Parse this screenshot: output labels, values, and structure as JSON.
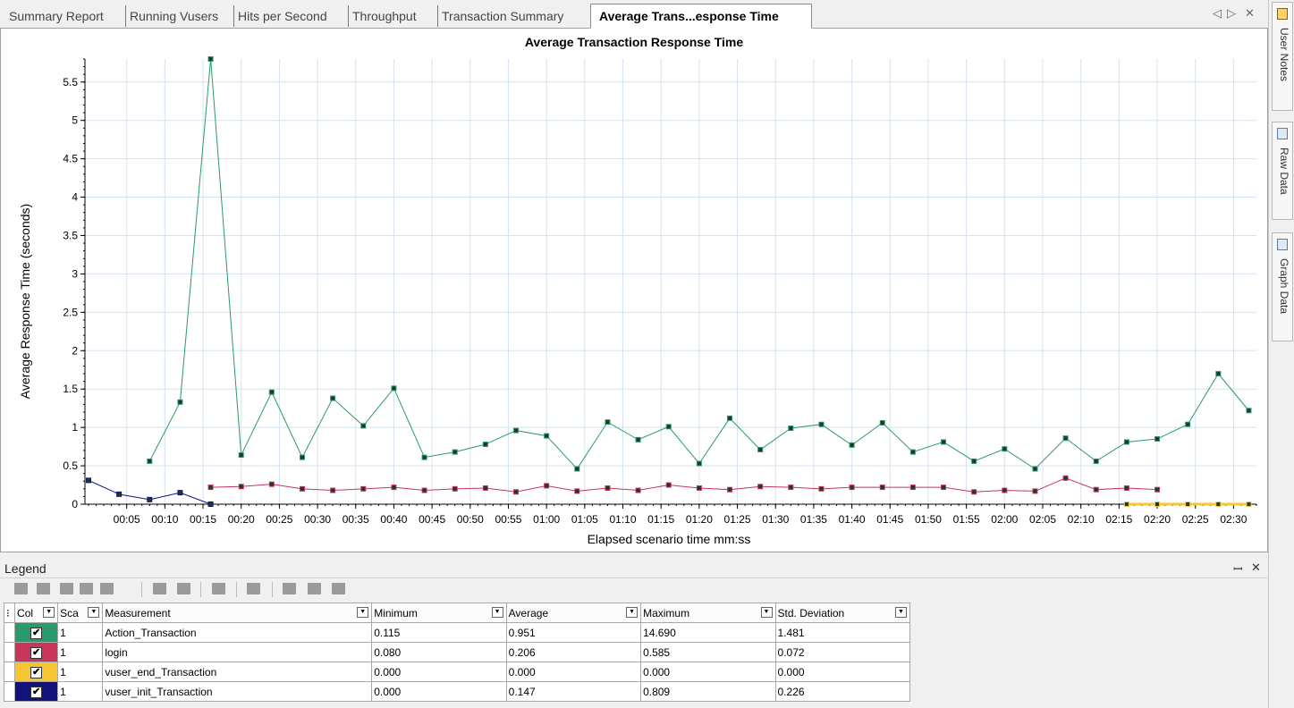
{
  "tabs": [
    {
      "label": "Summary Report",
      "active": false
    },
    {
      "label": "Running Vusers",
      "active": false
    },
    {
      "label": "Hits per Second",
      "active": false
    },
    {
      "label": "Throughput",
      "active": false
    },
    {
      "label": "Transaction Summary",
      "active": false
    },
    {
      "label": "Average Trans...esponse Time",
      "active": true
    }
  ],
  "tab_nav": {
    "prev": "◁",
    "next": "▷",
    "close": "✕"
  },
  "right_rail": [
    {
      "label": "User Notes",
      "icon": "user-notes-icon"
    },
    {
      "label": "Raw Data",
      "icon": "raw-data-icon"
    },
    {
      "label": "Graph Data",
      "icon": "graph-data-icon"
    }
  ],
  "chart_data": {
    "type": "line",
    "title": "Average Transaction Response Time",
    "xlabel": "Elapsed scenario time mm:ss",
    "ylabel": "Average Response Time (seconds)",
    "ylim": [
      0,
      5.8
    ],
    "y_ticks": [
      "0",
      "0.5",
      "1",
      "1.5",
      "2",
      "2.5",
      "3",
      "3.5",
      "4",
      "4.5",
      "5",
      "5.5"
    ],
    "x_ticks": [
      "00:05",
      "00:10",
      "00:15",
      "00:20",
      "00:25",
      "00:30",
      "00:35",
      "00:40",
      "00:45",
      "00:50",
      "00:55",
      "01:00",
      "01:05",
      "01:10",
      "01:15",
      "01:20",
      "01:25",
      "01:30",
      "01:35",
      "01:40",
      "01:45",
      "01:50",
      "01:55",
      "02:00",
      "02:05",
      "02:10",
      "02:15",
      "02:20",
      "02:25",
      "02:30"
    ],
    "x_unit": "seconds",
    "xlim": [
      0,
      153
    ],
    "grid": true,
    "series": [
      {
        "name": "Action_Transaction",
        "color": "#2a9a6a",
        "x": [
          8,
          12,
          16,
          20,
          24,
          28,
          32,
          36,
          40,
          44,
          48,
          52,
          56,
          60,
          64,
          68,
          72,
          76,
          80,
          84,
          88,
          92,
          96,
          100,
          104,
          108,
          112,
          116,
          120,
          124,
          128,
          132,
          136,
          140,
          144,
          148,
          152
        ],
        "y": [
          0.56,
          1.33,
          5.8,
          0.64,
          1.46,
          0.61,
          1.38,
          1.02,
          1.51,
          0.61,
          0.68,
          0.78,
          0.96,
          0.89,
          0.46,
          1.07,
          0.84,
          1.01,
          0.53,
          1.12,
          0.71,
          0.99,
          1.04,
          0.77,
          1.06,
          0.68,
          0.81,
          0.56,
          0.72,
          0.46,
          0.86,
          0.56,
          0.81,
          0.85,
          1.04,
          1.7,
          1.22
        ]
      },
      {
        "name": "login",
        "color": "#c8345a",
        "x": [
          16,
          20,
          24,
          28,
          32,
          36,
          40,
          44,
          48,
          52,
          56,
          60,
          64,
          68,
          72,
          76,
          80,
          84,
          88,
          92,
          96,
          100,
          104,
          108,
          112,
          116,
          120,
          124,
          128,
          132,
          136,
          140
        ],
        "y": [
          0.22,
          0.23,
          0.26,
          0.2,
          0.18,
          0.2,
          0.22,
          0.18,
          0.2,
          0.21,
          0.16,
          0.24,
          0.17,
          0.21,
          0.18,
          0.25,
          0.21,
          0.19,
          0.23,
          0.22,
          0.2,
          0.22,
          0.22,
          0.22,
          0.22,
          0.16,
          0.18,
          0.17,
          0.34,
          0.19,
          0.21,
          0.19
        ]
      },
      {
        "name": "vuser_end_Transaction",
        "color": "#f7c532",
        "x": [
          136,
          140,
          144,
          148,
          152
        ],
        "y": [
          0,
          0,
          0,
          0,
          0
        ]
      },
      {
        "name": "vuser_init_Transaction",
        "color": "#12127a",
        "x": [
          0,
          4,
          8,
          12,
          16
        ],
        "y": [
          0.31,
          0.13,
          0.06,
          0.15,
          0.0
        ]
      }
    ]
  },
  "legend": {
    "title": "Legend",
    "pin": "ꟷ",
    "close": "✕",
    "columns": [
      "Col",
      "Sca",
      "Measurement",
      "Minimum",
      "Average",
      "Maximum",
      "Std. Deviation"
    ],
    "rows": [
      {
        "color": "#2a9a6a",
        "checked": "✔",
        "scale": "1",
        "measurement": "Action_Transaction",
        "minimum": "0.115",
        "average": "0.951",
        "maximum": "14.690",
        "std": "1.481"
      },
      {
        "color": "#c8345a",
        "checked": "✔",
        "scale": "1",
        "measurement": "login",
        "minimum": "0.080",
        "average": "0.206",
        "maximum": "0.585",
        "std": "0.072"
      },
      {
        "color": "#f7c532",
        "checked": "✔",
        "scale": "1",
        "measurement": "vuser_end_Transaction",
        "minimum": "0.000",
        "average": "0.000",
        "maximum": "0.000",
        "std": "0.000"
      },
      {
        "color": "#12127a",
        "checked": "✔",
        "scale": "1",
        "measurement": "vuser_init_Transaction",
        "minimum": "0.000",
        "average": "0.147",
        "maximum": "0.809",
        "std": "0.226"
      }
    ]
  }
}
